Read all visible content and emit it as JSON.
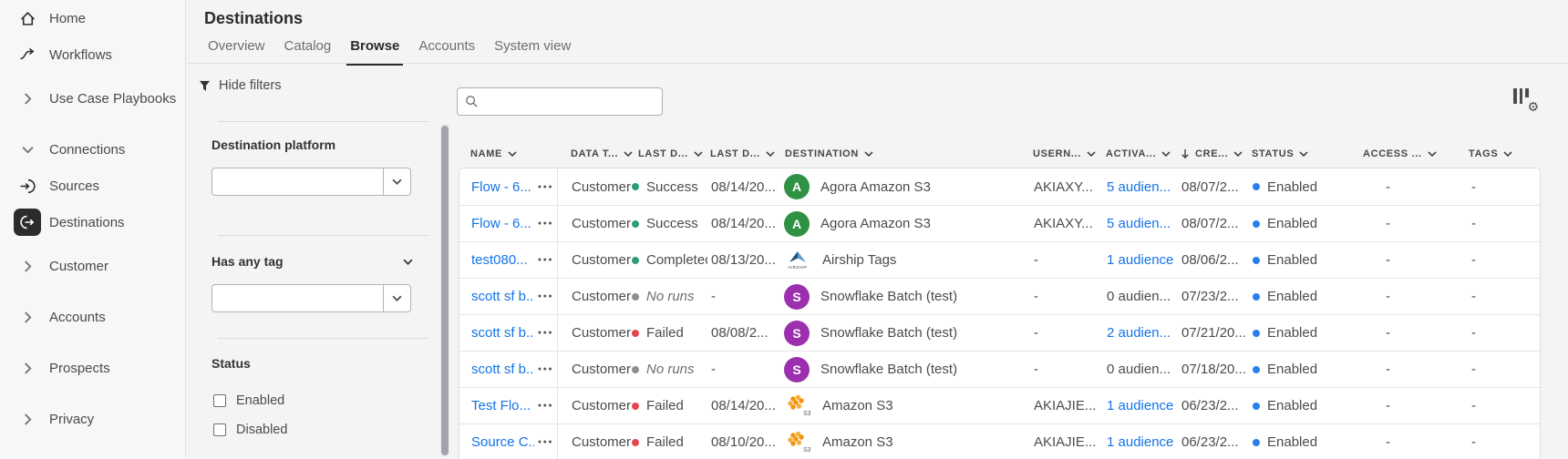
{
  "app": {
    "title": "Destinations"
  },
  "sidebar": {
    "items": [
      {
        "label": "Home",
        "icon": "home-icon",
        "selected": false
      },
      {
        "label": "Workflows",
        "icon": "workflows-icon",
        "selected": false
      },
      {
        "label": "Use Case Playbooks",
        "icon": "chevron-right-icon",
        "selected": false
      },
      {
        "label": "Connections",
        "icon": "chevron-down-icon",
        "selected": false
      },
      {
        "label": "Sources",
        "icon": "sources-icon",
        "selected": false
      },
      {
        "label": "Destinations",
        "icon": "destinations-icon",
        "selected": true
      },
      {
        "label": "Customer",
        "icon": "chevron-right-icon",
        "selected": false
      },
      {
        "label": "Accounts",
        "icon": "chevron-right-icon",
        "selected": false
      },
      {
        "label": "Prospects",
        "icon": "chevron-right-icon",
        "selected": false
      },
      {
        "label": "Privacy",
        "icon": "chevron-right-icon",
        "selected": false
      }
    ]
  },
  "tabs": [
    {
      "label": "Overview",
      "active": false
    },
    {
      "label": "Catalog",
      "active": false
    },
    {
      "label": "Browse",
      "active": true
    },
    {
      "label": "Accounts",
      "active": false
    },
    {
      "label": "System view",
      "active": false
    }
  ],
  "toolbar": {
    "hide_filters_label": "Hide filters",
    "search_placeholder": "",
    "search_value": ""
  },
  "filters": {
    "destination_platform": {
      "label": "Destination platform",
      "value": ""
    },
    "has_any_tag": {
      "label": "Has any tag",
      "value": ""
    },
    "status": {
      "label": "Status",
      "options": [
        {
          "label": "Enabled",
          "checked": false
        },
        {
          "label": "Disabled",
          "checked": false
        }
      ]
    }
  },
  "table": {
    "columns": [
      {
        "label": "NAME"
      },
      {
        "label": "DATA T..."
      },
      {
        "label": "LAST D..."
      },
      {
        "label": "LAST D..."
      },
      {
        "label": "DESTINATION"
      },
      {
        "label": "USERN..."
      },
      {
        "label": "ACTIVA..."
      },
      {
        "label": "CRE...",
        "sorted": "desc"
      },
      {
        "label": "STATUS"
      },
      {
        "label": "ACCESS ..."
      },
      {
        "label": "TAGS"
      }
    ],
    "sort": {
      "column": "CRE...",
      "direction": "desc"
    },
    "rows": [
      {
        "name": "Flow - 6...",
        "data_type": "Customers",
        "run_status": {
          "label": "Success",
          "kind": "success"
        },
        "last_run": "08/14/20...",
        "destination": {
          "label": "Agora Amazon S3",
          "icon": "agora-avatar",
          "letter": "A",
          "color": "#2e9143"
        },
        "username": "AKIAXY...",
        "activation": {
          "label": "5 audien...",
          "link": true
        },
        "created": "08/07/2...",
        "status_label": "Enabled",
        "access": "-",
        "tags": "-"
      },
      {
        "name": "Flow - 6...",
        "data_type": "Customers",
        "run_status": {
          "label": "Success",
          "kind": "success"
        },
        "last_run": "08/14/20...",
        "destination": {
          "label": "Agora Amazon S3",
          "icon": "agora-avatar",
          "letter": "A",
          "color": "#2e9143"
        },
        "username": "AKIAXY...",
        "activation": {
          "label": "5 audien...",
          "link": true
        },
        "created": "08/07/2...",
        "status_label": "Enabled",
        "access": "-",
        "tags": "-"
      },
      {
        "name": "test080...",
        "data_type": "Customers",
        "run_status": {
          "label": "Completed",
          "kind": "success"
        },
        "last_run": "08/13/20...",
        "destination": {
          "label": "Airship Tags",
          "icon": "airship-icon"
        },
        "username": "-",
        "activation": {
          "label": "1 audience",
          "link": true
        },
        "created": "08/06/2...",
        "status_label": "Enabled",
        "access": "-",
        "tags": "-"
      },
      {
        "name": "scott sf b...",
        "data_type": "Customers",
        "run_status": {
          "label": "No runs",
          "kind": "none"
        },
        "last_run": "-",
        "destination": {
          "label": "Snowflake Batch (test)",
          "icon": "snowflake-avatar",
          "letter": "S",
          "color": "#9b2fae"
        },
        "username": "-",
        "activation": {
          "label": "0 audien...",
          "link": false
        },
        "created": "07/23/2...",
        "status_label": "Enabled",
        "access": "-",
        "tags": "-"
      },
      {
        "name": "scott sf b...",
        "data_type": "Customers",
        "run_status": {
          "label": "Failed",
          "kind": "failed"
        },
        "last_run": "08/08/2...",
        "destination": {
          "label": "Snowflake Batch (test)",
          "icon": "snowflake-avatar",
          "letter": "S",
          "color": "#9b2fae"
        },
        "username": "-",
        "activation": {
          "label": "2 audien...",
          "link": true
        },
        "created": "07/21/20...",
        "status_label": "Enabled",
        "access": "-",
        "tags": "-"
      },
      {
        "name": "scott sf b...",
        "data_type": "Customers",
        "run_status": {
          "label": "No runs",
          "kind": "none"
        },
        "last_run": "-",
        "destination": {
          "label": "Snowflake Batch (test)",
          "icon": "snowflake-avatar",
          "letter": "S",
          "color": "#9b2fae"
        },
        "username": "-",
        "activation": {
          "label": "0 audien...",
          "link": false
        },
        "created": "07/18/20...",
        "status_label": "Enabled",
        "access": "-",
        "tags": "-"
      },
      {
        "name": "Test Flo...",
        "data_type": "Customers",
        "run_status": {
          "label": "Failed",
          "kind": "failed"
        },
        "last_run": "08/14/20...",
        "destination": {
          "label": "Amazon S3",
          "icon": "s3-icon"
        },
        "username": "AKIAJIE...",
        "activation": {
          "label": "1 audience",
          "link": true
        },
        "created": "06/23/2...",
        "status_label": "Enabled",
        "access": "-",
        "tags": "-"
      },
      {
        "name": "Source C...",
        "data_type": "Customers",
        "run_status": {
          "label": "Failed",
          "kind": "failed"
        },
        "last_run": "08/10/20...",
        "destination": {
          "label": "Amazon S3",
          "icon": "s3-icon"
        },
        "username": "AKIAJIE...",
        "activation": {
          "label": "1 audience",
          "link": true
        },
        "created": "06/23/2...",
        "status_label": "Enabled",
        "access": "-",
        "tags": "-"
      }
    ]
  },
  "colors": {
    "link": "#1473e6",
    "enabled_dot": "#2680eb",
    "run_status": {
      "success": "#2d9d78",
      "failed": "#e34850",
      "none": "#8e8e8e"
    }
  }
}
